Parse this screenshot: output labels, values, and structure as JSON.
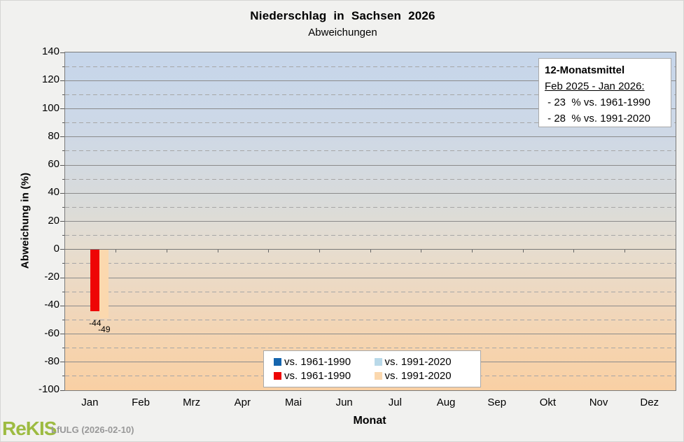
{
  "title": "Niederschlag in Sachsen 2026",
  "subtitle": "Abweichungen",
  "info_box": {
    "heading": "12-Monatsmittel",
    "period": "Feb 2025 - Jan 2026:",
    "lines": [
      " - 23  % vs. 1961-1990",
      " - 28  % vs. 1991-2020"
    ]
  },
  "footer": {
    "logo": "ReKIS",
    "source": "LfULG (2026-02-10)"
  },
  "chart_data": {
    "type": "bar",
    "title": "Niederschlag in Sachsen 2026",
    "subtitle": "Abweichungen",
    "xlabel": "Monat",
    "ylabel": "Abweichung in (%)",
    "ylim": [
      -100,
      140
    ],
    "ytick_major_step": 20,
    "ytick_minor_step": 10,
    "grid": "solid lines every 20, dashed lines every odd 10",
    "legend_position": "bottom-center-inside",
    "plot_bg": "vertical gradient blue #c6d6ea (top) to orange #f9d0a4 (bottom)",
    "categories": [
      "Jan",
      "Feb",
      "Mrz",
      "Apr",
      "Mai",
      "Jun",
      "Jul",
      "Aug",
      "Sep",
      "Okt",
      "Nov",
      "Dez"
    ],
    "series": [
      {
        "name": "vs. 1961-1990",
        "color": "#1565ae",
        "values": [
          null,
          null,
          null,
          null,
          null,
          null,
          null,
          null,
          null,
          null,
          null,
          null
        ]
      },
      {
        "name": "vs. 1991-2020",
        "color": "#b9d9e9",
        "values": [
          null,
          null,
          null,
          null,
          null,
          null,
          null,
          null,
          null,
          null,
          null,
          null
        ]
      },
      {
        "name": "vs. 1961-1990",
        "color": "#ee0505",
        "values": [
          -44,
          null,
          null,
          null,
          null,
          null,
          null,
          null,
          null,
          null,
          null,
          null
        ]
      },
      {
        "name": "vs. 1991-2020",
        "color": "#fbd8ae",
        "values": [
          -49,
          null,
          null,
          null,
          null,
          null,
          null,
          null,
          null,
          null,
          null,
          null
        ]
      }
    ]
  }
}
